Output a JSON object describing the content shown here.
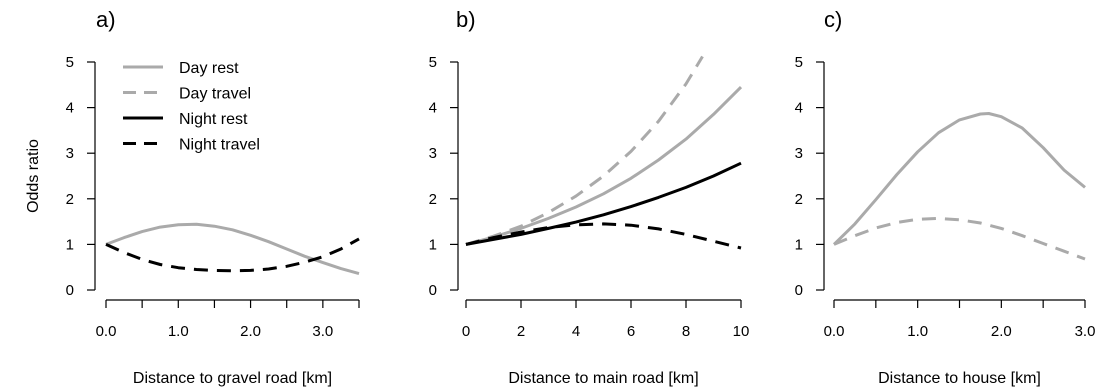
{
  "chart_data": [
    {
      "type": "line",
      "panel_label": "a)",
      "xlabel": "Distance to gravel road [km]",
      "ylabel": "Odds ratio",
      "xlim": [
        0,
        3.5
      ],
      "ylim": [
        0,
        5
      ],
      "xticks": [
        0,
        0.5,
        1.0,
        1.5,
        2.0,
        2.5,
        3.0,
        3.5
      ],
      "xtick_labels": [
        "0.0",
        "",
        "1.0",
        "",
        "2.0",
        "",
        "3.0",
        ""
      ],
      "yticks": [
        0,
        1,
        2,
        3,
        4,
        5
      ],
      "ytick_labels": [
        "0",
        "1",
        "2",
        "3",
        "4",
        "5"
      ],
      "grid": false,
      "legend": {
        "placement": "top-left",
        "entries": [
          {
            "label": "Day rest",
            "color": "#aaaaaa",
            "dash": "solid"
          },
          {
            "label": "Day travel",
            "color": "#aaaaaa",
            "dash": "dashed"
          },
          {
            "label": "Night rest",
            "color": "#000000",
            "dash": "solid"
          },
          {
            "label": "Night travel",
            "color": "#000000",
            "dash": "dashed"
          }
        ]
      },
      "series": [
        {
          "name": "Day rest",
          "color": "#aaaaaa",
          "dash": "solid",
          "x": [
            0,
            0.25,
            0.5,
            0.75,
            1.0,
            1.25,
            1.5,
            1.75,
            2.0,
            2.25,
            2.5,
            2.75,
            3.0,
            3.25,
            3.5
          ],
          "y": [
            1.0,
            1.15,
            1.28,
            1.38,
            1.43,
            1.44,
            1.4,
            1.32,
            1.2,
            1.06,
            0.9,
            0.74,
            0.6,
            0.47,
            0.36
          ]
        },
        {
          "name": "Night travel",
          "color": "#000000",
          "dash": "dashed",
          "x": [
            0,
            0.25,
            0.5,
            0.75,
            1.0,
            1.25,
            1.5,
            1.75,
            2.0,
            2.25,
            2.5,
            2.75,
            3.0,
            3.25,
            3.5
          ],
          "y": [
            1.0,
            0.82,
            0.67,
            0.56,
            0.49,
            0.45,
            0.43,
            0.42,
            0.43,
            0.46,
            0.52,
            0.61,
            0.73,
            0.9,
            1.12
          ]
        }
      ]
    },
    {
      "type": "line",
      "panel_label": "b)",
      "xlabel": "Distance to main road [km]",
      "ylabel": "",
      "xlim": [
        0,
        10
      ],
      "ylim": [
        0,
        5
      ],
      "xticks": [
        0,
        2,
        4,
        6,
        8,
        10
      ],
      "xtick_labels": [
        "0",
        "2",
        "4",
        "6",
        "8",
        "10"
      ],
      "yticks": [
        0,
        1,
        2,
        3,
        4,
        5
      ],
      "ytick_labels": [
        "0",
        "1",
        "2",
        "3",
        "4",
        "5"
      ],
      "grid": false,
      "series": [
        {
          "name": "Day rest",
          "color": "#aaaaaa",
          "dash": "solid",
          "x": [
            0,
            1,
            2,
            3,
            4,
            5,
            6,
            7,
            8,
            9,
            10
          ],
          "y": [
            1.0,
            1.16,
            1.35,
            1.57,
            1.82,
            2.11,
            2.45,
            2.85,
            3.31,
            3.85,
            4.45
          ]
        },
        {
          "name": "Day travel",
          "color": "#aaaaaa",
          "dash": "dashed",
          "x": [
            0,
            1,
            2,
            3,
            4,
            5,
            6,
            7,
            8,
            8.6
          ],
          "y": [
            1.0,
            1.18,
            1.4,
            1.7,
            2.06,
            2.5,
            3.04,
            3.7,
            4.52,
            5.12
          ]
        },
        {
          "name": "Night rest",
          "color": "#000000",
          "dash": "solid",
          "x": [
            0,
            1,
            2,
            3,
            4,
            5,
            6,
            7,
            8,
            9,
            10
          ],
          "y": [
            1.0,
            1.11,
            1.22,
            1.35,
            1.49,
            1.65,
            1.83,
            2.03,
            2.25,
            2.5,
            2.78
          ]
        },
        {
          "name": "Night travel",
          "color": "#000000",
          "dash": "dashed",
          "x": [
            0,
            1,
            2,
            3,
            4,
            5,
            6,
            7,
            8,
            9,
            10
          ],
          "y": [
            1.0,
            1.15,
            1.27,
            1.37,
            1.43,
            1.45,
            1.42,
            1.34,
            1.22,
            1.07,
            0.92
          ]
        }
      ]
    },
    {
      "type": "line",
      "panel_label": "c)",
      "xlabel": "Distance to house [km]",
      "ylabel": "",
      "xlim": [
        0,
        3
      ],
      "ylim": [
        0,
        5
      ],
      "xticks": [
        0,
        0.5,
        1.0,
        1.5,
        2.0,
        2.5,
        3.0
      ],
      "xtick_labels": [
        "0.0",
        "",
        "1.0",
        "",
        "2.0",
        "",
        "3.0"
      ],
      "yticks": [
        0,
        1,
        2,
        3,
        4,
        5
      ],
      "ytick_labels": [
        "0",
        "1",
        "2",
        "3",
        "4",
        "5"
      ],
      "grid": false,
      "series": [
        {
          "name": "Day rest",
          "color": "#aaaaaa",
          "dash": "solid",
          "x": [
            0,
            0.25,
            0.5,
            0.75,
            1.0,
            1.25,
            1.5,
            1.75,
            1.85,
            2.0,
            2.25,
            2.5,
            2.75,
            3.0
          ],
          "y": [
            1.0,
            1.45,
            1.98,
            2.53,
            3.03,
            3.45,
            3.73,
            3.86,
            3.87,
            3.8,
            3.55,
            3.12,
            2.63,
            2.25
          ]
        },
        {
          "name": "Day travel",
          "color": "#aaaaaa",
          "dash": "dashed",
          "x": [
            0,
            0.25,
            0.5,
            0.75,
            1.0,
            1.25,
            1.5,
            1.75,
            2.0,
            2.25,
            2.5,
            2.75,
            3.0
          ],
          "y": [
            1.0,
            1.19,
            1.36,
            1.48,
            1.55,
            1.57,
            1.54,
            1.47,
            1.35,
            1.19,
            1.02,
            0.85,
            0.68
          ]
        }
      ]
    }
  ]
}
